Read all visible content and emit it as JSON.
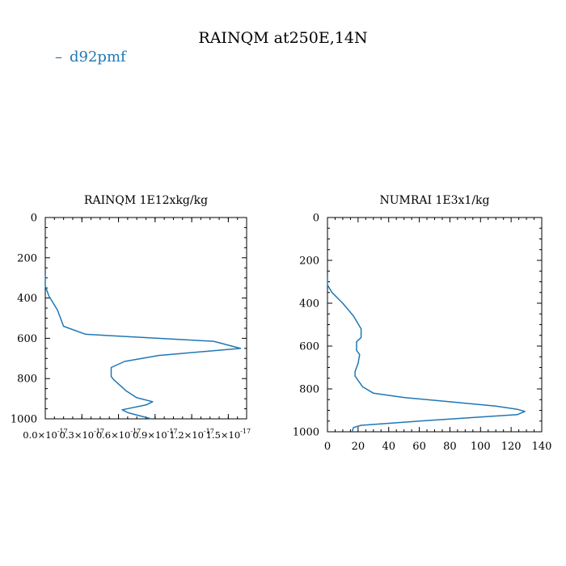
{
  "figure": {
    "title": "RAINQM at250E,14N",
    "series_color": "#1f77b4"
  },
  "chart_data": [
    {
      "type": "line",
      "title": "RAINQM  1E12xkg/kg",
      "xlabel": "",
      "ylabel": "",
      "xlim": [
        0.0,
        1.65e-17
      ],
      "ylim": [
        1000,
        0
      ],
      "y_inverted": true,
      "grid": false,
      "legend_placement": "top-left",
      "x_ticks": [
        {
          "value": 0.0,
          "mantissa": "0.0",
          "exp": "-17"
        },
        {
          "value": 3e-18,
          "mantissa": "0.3",
          "exp": "-17"
        },
        {
          "value": 6e-18,
          "mantissa": "0.6",
          "exp": "-17"
        },
        {
          "value": 9e-18,
          "mantissa": "0.9",
          "exp": "-17"
        },
        {
          "value": 1.2e-17,
          "mantissa": "1.2",
          "exp": "-17"
        },
        {
          "value": 1.5e-17,
          "mantissa": "1.5",
          "exp": "-17"
        }
      ],
      "x_tick_times": "×10",
      "y_ticks": [
        0,
        200,
        400,
        600,
        800,
        1000
      ],
      "series": [
        {
          "name": "d92pmf",
          "x": [
            0.0,
            0.0,
            3e-19,
            1e-18,
            1.5e-18,
            3.3e-18,
            1.38e-17,
            1.6e-17,
            9.3e-18,
            6.5e-18,
            5.4e-18,
            5.4e-18,
            5.6e-18,
            6.6e-18,
            7.5e-18,
            8.8e-18,
            8.3e-18,
            6.3e-18,
            6.8e-18,
            8.7e-18
          ],
          "y": [
            280,
            340,
            390,
            460,
            540,
            580,
            615,
            650,
            685,
            715,
            745,
            790,
            805,
            860,
            895,
            915,
            930,
            955,
            970,
            1000
          ]
        }
      ]
    },
    {
      "type": "line",
      "title": "NUMRAI  1E3x1/kg",
      "xlabel": "",
      "ylabel": "",
      "xlim": [
        0,
        140
      ],
      "ylim": [
        1000,
        0
      ],
      "y_inverted": true,
      "grid": false,
      "x_ticks": [
        0,
        20,
        40,
        60,
        80,
        100,
        120,
        140
      ],
      "y_ticks": [
        0,
        200,
        400,
        600,
        800,
        1000
      ],
      "series": [
        {
          "name": "d92pmf",
          "x": [
            0,
            0,
            3,
            10,
            17,
            22,
            22,
            19,
            19,
            21,
            20,
            18,
            18,
            23,
            30,
            50,
            80,
            110,
            124,
            129,
            124,
            60,
            22,
            17,
            16
          ],
          "y": [
            275,
            315,
            350,
            400,
            460,
            520,
            560,
            580,
            620,
            640,
            680,
            720,
            740,
            790,
            820,
            840,
            860,
            880,
            895,
            905,
            920,
            950,
            970,
            980,
            1000
          ]
        }
      ]
    }
  ]
}
